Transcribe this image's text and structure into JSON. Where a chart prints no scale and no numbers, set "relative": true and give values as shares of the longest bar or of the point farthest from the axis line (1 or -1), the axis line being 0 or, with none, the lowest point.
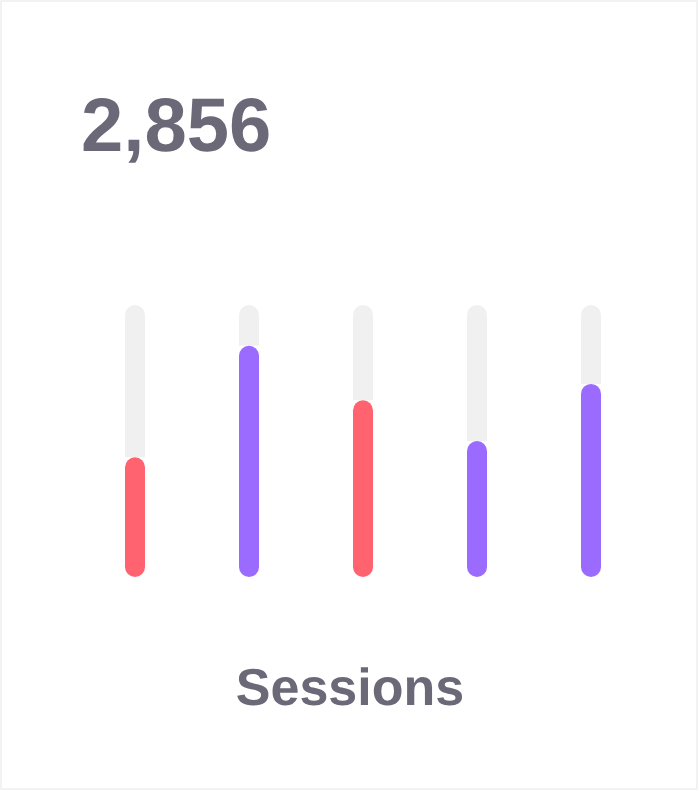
{
  "chart_data": {
    "type": "bar",
    "title": "2,856",
    "xlabel": "Sessions",
    "relative": true,
    "stacked": true,
    "categories": [
      null,
      null,
      null,
      null,
      null
    ],
    "series": [
      {
        "colors": [
          "#ff6370",
          "#9b6bff",
          "#ff6370",
          "#9b6bff",
          "#9b6bff"
        ],
        "values": [
          0.44,
          0.85,
          0.65,
          0.5,
          0.71
        ]
      },
      {
        "color": "#f0f0f0",
        "values": [
          0.56,
          0.15,
          0.35,
          0.5,
          0.29
        ]
      }
    ]
  }
}
